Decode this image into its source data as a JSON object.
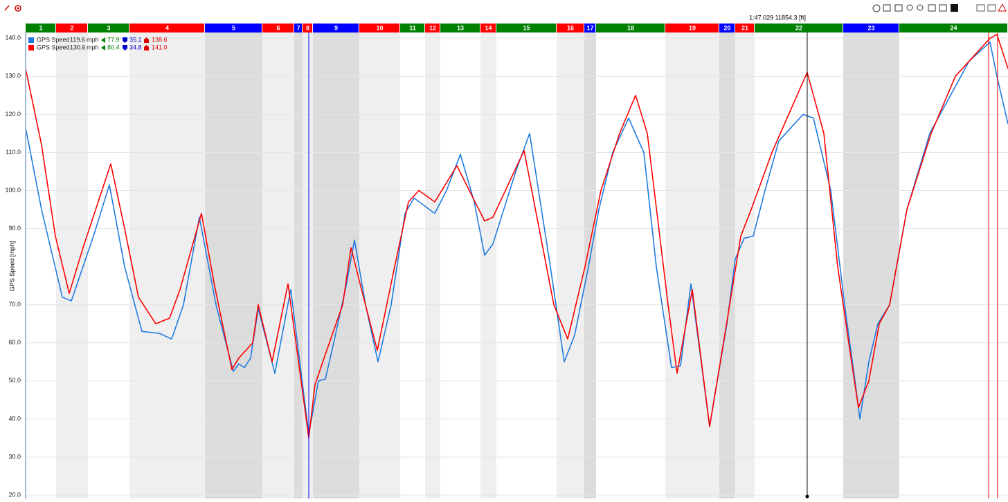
{
  "chart_data": {
    "type": "line",
    "ylabel": "GPS Speed [mph]",
    "xlim": [
      0,
      14900
    ],
    "ylim": [
      19.1,
      141.5
    ],
    "yticks": [
      {
        "value": 20,
        "label": "20.0"
      },
      {
        "value": 30,
        "label": "30.0"
      },
      {
        "value": 40,
        "label": "40.0"
      },
      {
        "value": 50,
        "label": "50.0"
      },
      {
        "value": 60,
        "label": "60.0"
      },
      {
        "value": 70,
        "label": "70.0"
      },
      {
        "value": 90,
        "label": "90.0"
      },
      {
        "value": 100,
        "label": "100.0"
      },
      {
        "value": 110,
        "label": "110.0"
      },
      {
        "value": 120,
        "label": "120.0"
      },
      {
        "value": 130,
        "label": "130.0"
      },
      {
        "value": 140,
        "label": "140.0"
      }
    ],
    "grid": true,
    "cursor": {
      "label": "1:47.029  11854.3 [ft]",
      "x": 11854.3
    },
    "markers": [
      {
        "x": 4295,
        "color": "#0000ff"
      },
      {
        "x": 14606,
        "color": "#ff0000"
      },
      {
        "x": 14742,
        "color": "#ff0000"
      }
    ],
    "sectors": {
      "labels": [
        "1",
        "2",
        "3",
        "4",
        "5",
        "6",
        "7",
        "8",
        "9",
        "10",
        "11",
        "12",
        "13",
        "14",
        "15",
        "16",
        "17",
        "18",
        "19",
        "20",
        "21",
        "22",
        "23",
        "24"
      ],
      "starts": [
        0,
        462,
        945,
        1575,
        2720,
        3591,
        4074,
        4200,
        4358,
        5061,
        5681,
        6059,
        6290,
        6899,
        7140,
        8054,
        8474,
        8652,
        9702,
        10521,
        10763,
        11057,
        12401,
        13251
      ],
      "colors": [
        "#008000",
        "#ff0000",
        "#008000",
        "#ff0000",
        "#0000ff",
        "#ff0000",
        "#0000ff",
        "#ff0000",
        "#0000ff",
        "#ff0000",
        "#008000",
        "#ff0000",
        "#008000",
        "#ff0000",
        "#008000",
        "#ff0000",
        "#0000ff",
        "#008000",
        "#ff0000",
        "#0000ff",
        "#ff0000",
        "#008000",
        "#0000ff",
        "#008000"
      ]
    },
    "series": [
      {
        "name": "GPS Speed",
        "color": "#1e7be0",
        "unit": "mph",
        "cursor_value": "119.6",
        "stat_avg": "77.9",
        "stat_min": "35.1",
        "stat_max": "138.6",
        "x": [
          0,
          242,
          556,
          693,
          1029,
          1271,
          1502,
          1764,
          2027,
          2216,
          2394,
          2636,
          2888,
          3150,
          3234,
          3318,
          3413,
          3528,
          3780,
          4022,
          4295,
          4442,
          4547,
          4673,
          4862,
          4988,
          5156,
          5345,
          5544,
          5754,
          5891,
          6206,
          6384,
          6594,
          6804,
          6962,
          7088,
          7434,
          7644,
          7959,
          8169,
          8327,
          8537,
          8694,
          8904,
          9146,
          9377,
          9566,
          9797,
          9933,
          10091,
          10374,
          10637,
          10763,
          10899,
          11036,
          11214,
          11424,
          11792,
          11949,
          12212,
          12422,
          12579,
          12653,
          12789,
          12926,
          13104,
          13367,
          13713,
          14312,
          14627,
          14732,
          14900
        ],
        "values": [
          116.5,
          95,
          72,
          71,
          88,
          101.5,
          80,
          63,
          62.5,
          61,
          70,
          93,
          70,
          52.5,
          54.5,
          53.5,
          56,
          69,
          52,
          74,
          36,
          50,
          50.5,
          60,
          75,
          87,
          70,
          55,
          70,
          94,
          98,
          94,
          100,
          109.5,
          97,
          83,
          86,
          105,
          115,
          80,
          55,
          62,
          80,
          95,
          110,
          119,
          110,
          80,
          53.5,
          54,
          75.5,
          38,
          65,
          82,
          87.5,
          88,
          100,
          113,
          120,
          119,
          100,
          70,
          50,
          40,
          55,
          65,
          70,
          95,
          115,
          134,
          139,
          130,
          117.5
        ]
      },
      {
        "name": "GPS Speed",
        "color": "#ff0000",
        "unit": "mph",
        "cursor_value": "130.6",
        "stat_avg": "80.4",
        "stat_min": "34.8",
        "stat_max": "141.0",
        "x": [
          0,
          242,
          452,
          662,
          872,
          1292,
          1502,
          1712,
          1974,
          2184,
          2342,
          2667,
          2866,
          3129,
          3234,
          3444,
          3528,
          3738,
          3980,
          4295,
          4389,
          4547,
          4809,
          4935,
          5124,
          5334,
          5597,
          5807,
          5964,
          6206,
          6542,
          6962,
          7088,
          7560,
          8012,
          8222,
          8484,
          8726,
          9009,
          9251,
          9429,
          9744,
          9881,
          10112,
          10374,
          10584,
          10847,
          11004,
          11319,
          11854,
          12107,
          12317,
          12527,
          12632,
          12789,
          12947,
          13104,
          13367,
          13734,
          14102,
          14312,
          14627,
          14732,
          14900
        ],
        "values": [
          132,
          112,
          88,
          73,
          85,
          107,
          90,
          72,
          65,
          66.5,
          74,
          94,
          75,
          53,
          56,
          60,
          70,
          55,
          75.5,
          35,
          49,
          57,
          70,
          85,
          72,
          58,
          80,
          97,
          100,
          97,
          106.5,
          92,
          93,
          110.5,
          70,
          61,
          80,
          100,
          115,
          125,
          115,
          70,
          52,
          74,
          38,
          60,
          88,
          95,
          110,
          131,
          115,
          80,
          55,
          43,
          50,
          65,
          70,
          95,
          115,
          130,
          134,
          140,
          141,
          132
        ]
      }
    ]
  }
}
